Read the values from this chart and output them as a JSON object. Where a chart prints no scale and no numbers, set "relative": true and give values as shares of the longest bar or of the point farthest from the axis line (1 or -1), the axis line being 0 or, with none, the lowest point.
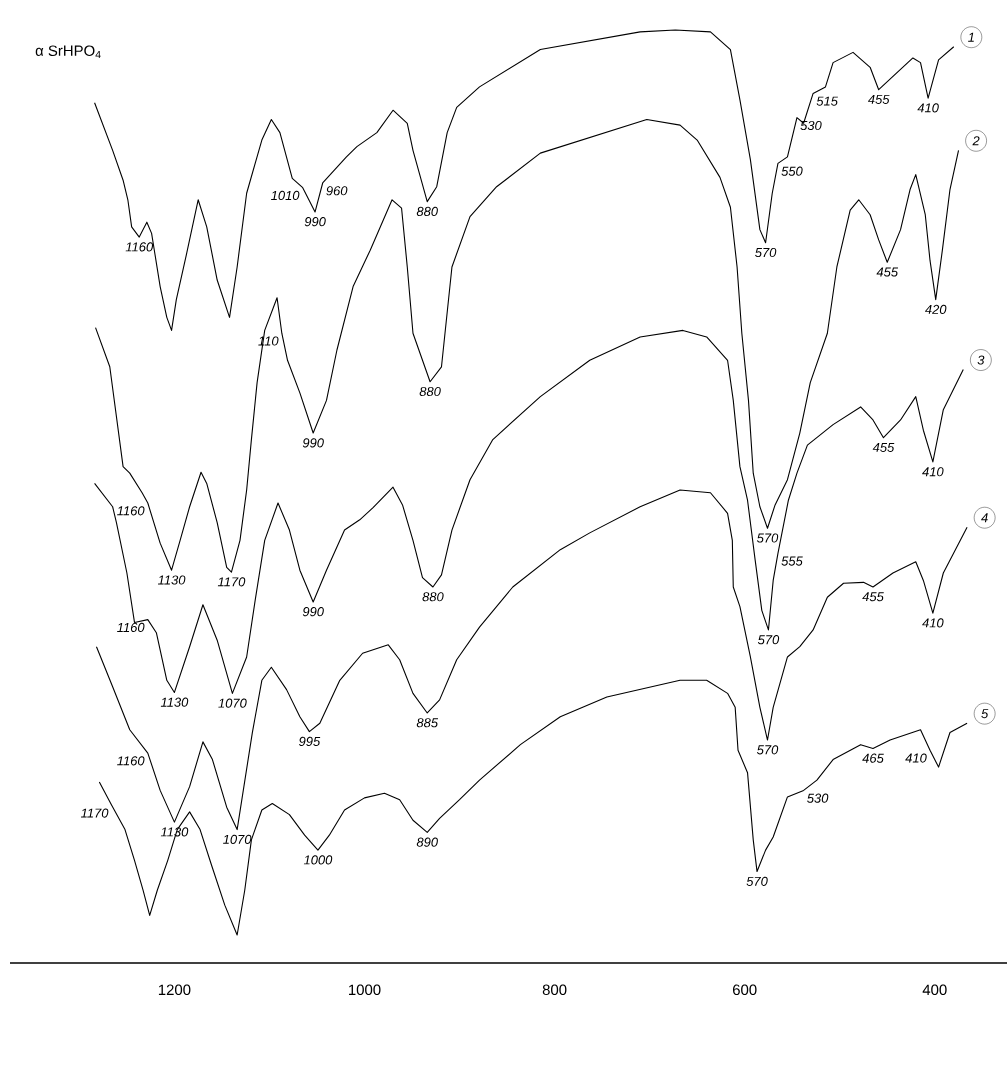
{
  "chart_data": {
    "type": "line",
    "relative": true,
    "tick_labels": "x",
    "legend": "right",
    "xlim": [
      1373,
      324
    ],
    "xticks": [
      1200,
      1000,
      800,
      600,
      400
    ],
    "series": [
      {
        "name": "1",
        "color": "#000000",
        "x": [
          1284,
          1265,
          1254,
          1249,
          1245,
          1237,
          1229,
          1224,
          1215,
          1208,
          1203,
          1198,
          1187,
          1175,
          1166,
          1155,
          1142,
          1134,
          1124,
          1108,
          1098,
          1089,
          1076,
          1065,
          1052,
          1044,
          1019,
          1008,
          987,
          970,
          955,
          949,
          934,
          924,
          913,
          903,
          879,
          815,
          710,
          673,
          636,
          615,
          605,
          594,
          584,
          578,
          571,
          565,
          555,
          545,
          538,
          528,
          515,
          507,
          486,
          468,
          459,
          423,
          415,
          407,
          396,
          380
        ],
        "values": [
          0.922,
          0.871,
          0.839,
          0.818,
          0.789,
          0.778,
          0.794,
          0.782,
          0.725,
          0.692,
          0.678,
          0.711,
          0.761,
          0.818,
          0.789,
          0.732,
          0.692,
          0.746,
          0.825,
          0.882,
          0.904,
          0.89,
          0.841,
          0.831,
          0.805,
          0.836,
          0.864,
          0.875,
          0.89,
          0.914,
          0.9,
          0.871,
          0.816,
          0.832,
          0.89,
          0.917,
          0.939,
          0.979,
          0.998,
          1,
          0.998,
          0.979,
          0.925,
          0.861,
          0.786,
          0.772,
          0.825,
          0.857,
          0.864,
          0.906,
          0.9,
          0.932,
          0.939,
          0.965,
          0.976,
          0.96,
          0.936,
          0.97,
          0.965,
          0.927,
          0.968,
          0.982
        ]
      },
      {
        "name": "2",
        "color": "#000000",
        "x": [
          1283,
          1268,
          1254,
          1247,
          1234,
          1228,
          1215,
          1203,
          1194,
          1184,
          1172,
          1166,
          1155,
          1145,
          1140,
          1131,
          1124,
          1119,
          1113,
          1105,
          1092,
          1087,
          1081,
          1068,
          1054,
          1040,
          1029,
          1012,
          994,
          971,
          961,
          955,
          949,
          931,
          919,
          908,
          889,
          861,
          815,
          703,
          668,
          650,
          626,
          615,
          608,
          603,
          596,
          591,
          584,
          576,
          568,
          555,
          542,
          531,
          513,
          503,
          489,
          480,
          468,
          459,
          450,
          436,
          426,
          420,
          410,
          405,
          399,
          392,
          384,
          375
        ],
        "values": [
          0.681,
          0.639,
          0.532,
          0.525,
          0.504,
          0.493,
          0.45,
          0.421,
          0.453,
          0.489,
          0.526,
          0.514,
          0.472,
          0.424,
          0.419,
          0.453,
          0.507,
          0.561,
          0.622,
          0.678,
          0.713,
          0.675,
          0.646,
          0.611,
          0.568,
          0.603,
          0.657,
          0.725,
          0.764,
          0.818,
          0.809,
          0.746,
          0.675,
          0.623,
          0.639,
          0.746,
          0.8,
          0.832,
          0.868,
          0.904,
          0.898,
          0.882,
          0.842,
          0.81,
          0.746,
          0.675,
          0.603,
          0.525,
          0.489,
          0.466,
          0.491,
          0.518,
          0.568,
          0.622,
          0.675,
          0.746,
          0.807,
          0.818,
          0.802,
          0.775,
          0.751,
          0.786,
          0.829,
          0.845,
          0.802,
          0.753,
          0.711,
          0.764,
          0.829,
          0.871
        ]
      },
      {
        "name": "3",
        "color": "#000000",
        "x": [
          1284,
          1265,
          1261,
          1250,
          1242,
          1228,
          1219,
          1208,
          1200,
          1184,
          1170,
          1155,
          1139,
          1124,
          1115,
          1105,
          1091,
          1079,
          1068,
          1054,
          1040,
          1021,
          1005,
          991,
          970,
          960,
          949,
          939,
          928,
          919,
          908,
          889,
          865,
          815,
          763,
          710,
          665,
          640,
          618,
          612,
          605,
          597,
          589,
          582,
          575,
          570,
          565,
          554,
          545,
          534,
          507,
          478,
          465,
          454,
          436,
          420,
          412,
          402,
          391,
          370
        ],
        "values": [
          0.514,
          0.489,
          0.472,
          0.418,
          0.365,
          0.368,
          0.354,
          0.303,
          0.29,
          0.339,
          0.384,
          0.346,
          0.289,
          0.328,
          0.389,
          0.453,
          0.493,
          0.464,
          0.421,
          0.387,
          0.421,
          0.464,
          0.475,
          0.488,
          0.51,
          0.491,
          0.453,
          0.413,
          0.403,
          0.416,
          0.464,
          0.518,
          0.561,
          0.607,
          0.646,
          0.671,
          0.678,
          0.671,
          0.646,
          0.603,
          0.532,
          0.496,
          0.432,
          0.378,
          0.357,
          0.41,
          0.439,
          0.496,
          0.525,
          0.555,
          0.577,
          0.596,
          0.582,
          0.563,
          0.582,
          0.607,
          0.571,
          0.537,
          0.593,
          0.636
        ]
      },
      {
        "name": "4",
        "color": "#000000",
        "x": [
          1282,
          1265,
          1247,
          1228,
          1215,
          1200,
          1184,
          1170,
          1160,
          1145,
          1134,
          1118,
          1108,
          1098,
          1082,
          1068,
          1058,
          1047,
          1026,
          1002,
          975,
          963,
          949,
          934,
          921,
          903,
          879,
          844,
          794,
          763,
          710,
          668,
          636,
          618,
          613,
          612,
          605,
          594,
          584,
          576,
          570,
          555,
          542,
          528,
          513,
          496,
          475,
          465,
          444,
          420,
          412,
          402,
          391,
          366
        ],
        "values": [
          0.339,
          0.296,
          0.25,
          0.225,
          0.185,
          0.151,
          0.189,
          0.237,
          0.218,
          0.167,
          0.143,
          0.247,
          0.303,
          0.317,
          0.293,
          0.264,
          0.248,
          0.257,
          0.303,
          0.332,
          0.341,
          0.325,
          0.289,
          0.268,
          0.282,
          0.325,
          0.36,
          0.403,
          0.443,
          0.461,
          0.489,
          0.507,
          0.504,
          0.482,
          0.453,
          0.403,
          0.382,
          0.328,
          0.274,
          0.239,
          0.274,
          0.328,
          0.339,
          0.357,
          0.392,
          0.407,
          0.408,
          0.403,
          0.418,
          0.43,
          0.41,
          0.375,
          0.418,
          0.467
        ]
      },
      {
        "name": "5",
        "color": "#000000",
        "x": [
          1279,
          1266,
          1252,
          1242,
          1233,
          1226,
          1218,
          1207,
          1197,
          1184,
          1173,
          1161,
          1147,
          1134,
          1126,
          1119,
          1108,
          1097,
          1079,
          1063,
          1049,
          1037,
          1021,
          1000,
          979,
          963,
          949,
          934,
          921,
          900,
          879,
          836,
          794,
          745,
          668,
          640,
          618,
          610,
          607,
          597,
          591,
          587,
          578,
          570,
          555,
          538,
          524,
          507,
          478,
          465,
          447,
          415,
          405,
          396,
          384,
          366
        ],
        "values": [
          0.194,
          0.169,
          0.143,
          0.11,
          0.078,
          0.051,
          0.078,
          0.11,
          0.143,
          0.162,
          0.143,
          0.105,
          0.062,
          0.03,
          0.078,
          0.132,
          0.164,
          0.171,
          0.159,
          0.137,
          0.121,
          0.137,
          0.164,
          0.177,
          0.182,
          0.175,
          0.153,
          0.14,
          0.155,
          0.175,
          0.196,
          0.234,
          0.264,
          0.285,
          0.303,
          0.303,
          0.289,
          0.274,
          0.228,
          0.204,
          0.132,
          0.098,
          0.121,
          0.135,
          0.178,
          0.185,
          0.196,
          0.218,
          0.234,
          0.23,
          0.239,
          0.25,
          0.228,
          0.21,
          0.247,
          0.257
        ]
      }
    ],
    "annotations": [
      "α SrHPO$_{4}$",
      {
        "text": "1160",
        "x": 1237,
        "y": 0.778
      },
      {
        "text": "1010",
        "x": 1065,
        "y": 0.831
      },
      {
        "text": "990",
        "x": 1052,
        "y": 0.805
      },
      {
        "text": "960",
        "x": 1044,
        "y": 0.836
      },
      {
        "text": "880",
        "x": 934,
        "y": 0.816
      },
      {
        "text": "570",
        "x": 578,
        "y": 0.772
      },
      {
        "text": "550",
        "x": 565,
        "y": 0.857
      },
      {
        "text": "530",
        "x": 545,
        "y": 0.906
      },
      {
        "text": "515",
        "x": 528,
        "y": 0.932
      },
      {
        "text": "455",
        "x": 459,
        "y": 0.936
      },
      {
        "text": "410",
        "x": 407,
        "y": 0.927
      },
      {
        "text": "1160",
        "x": 1228,
        "y": 0.493
      },
      {
        "text": "1130",
        "x": 1203,
        "y": 0.421
      },
      {
        "text": "1170",
        "x": 1140,
        "y": 0.419
      },
      {
        "text": "110",
        "x": 1087,
        "y": 0.675
      },
      {
        "text": "990",
        "x": 1054,
        "y": 0.568
      },
      {
        "text": "880",
        "x": 931,
        "y": 0.623
      },
      {
        "text": "570",
        "x": 576,
        "y": 0.466
      },
      {
        "text": "455",
        "x": 450,
        "y": 0.751
      },
      {
        "text": "420",
        "x": 399,
        "y": 0.711
      },
      {
        "text": "1160",
        "x": 1228,
        "y": 0.368
      },
      {
        "text": "1130",
        "x": 1200,
        "y": 0.29
      },
      {
        "text": "1070",
        "x": 1139,
        "y": 0.289
      },
      {
        "text": "990",
        "x": 1054,
        "y": 0.387
      },
      {
        "text": "880",
        "x": 928,
        "y": 0.403
      },
      {
        "text": "570",
        "x": 575,
        "y": 0.357
      },
      {
        "text": "555",
        "x": 565,
        "y": 0.439
      },
      {
        "text": "455",
        "x": 454,
        "y": 0.563
      },
      {
        "text": "410",
        "x": 402,
        "y": 0.537
      },
      {
        "text": "1160",
        "x": 1228,
        "y": 0.225
      },
      {
        "text": "1130",
        "x": 1200,
        "y": 0.151
      },
      {
        "text": "1070",
        "x": 1134,
        "y": 0.143
      },
      {
        "text": "995",
        "x": 1058,
        "y": 0.248
      },
      {
        "text": "885",
        "x": 934,
        "y": 0.268
      },
      {
        "text": "570",
        "x": 576,
        "y": 0.239
      },
      {
        "text": "455",
        "x": 465,
        "y": 0.403
      },
      {
        "text": "410",
        "x": 402,
        "y": 0.375
      },
      {
        "text": "1170",
        "x": 1266,
        "y": 0.169
      },
      {
        "text": "1000",
        "x": 1049,
        "y": 0.121
      },
      {
        "text": "890",
        "x": 934,
        "y": 0.14
      },
      {
        "text": "570",
        "x": 587,
        "y": 0.098
      },
      {
        "text": "530",
        "x": 538,
        "y": 0.185
      },
      {
        "text": "465",
        "x": 465,
        "y": 0.23
      },
      {
        "text": "410",
        "x": 405,
        "y": 0.228
      }
    ]
  }
}
